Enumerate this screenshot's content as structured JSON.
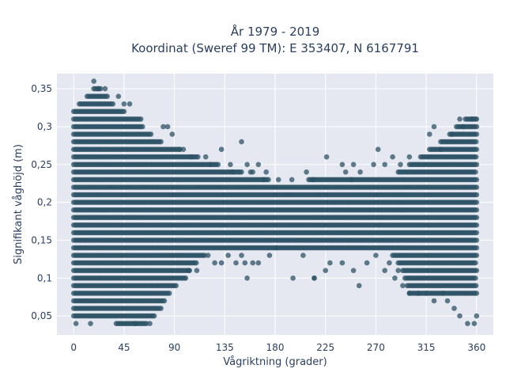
{
  "chart_data": {
    "type": "scatter",
    "title_line1": "År 1979 - 2019",
    "title_line2": "Koordinat (Sweref 99 TM): E 353407, N 6167791",
    "xlabel": "Vågriktning (grader)",
    "ylabel": "Signifikant våghöjd (m)",
    "xlim": [
      -15,
      375
    ],
    "ylim": [
      0.025,
      0.37
    ],
    "x_ticks": [
      0,
      45,
      90,
      135,
      180,
      225,
      270,
      315,
      360
    ],
    "x_tick_labels": [
      "0",
      "45",
      "90",
      "135",
      "180",
      "225",
      "270",
      "315",
      "360"
    ],
    "y_ticks": [
      0.05,
      0.1,
      0.15,
      0.2,
      0.25,
      0.3,
      0.35
    ],
    "y_tick_labels": [
      "0,05",
      "0,1",
      "0,15",
      "0,2",
      "0,25",
      "0,3",
      "0,35"
    ],
    "grid": true,
    "marker_color": "#2c5266",
    "plot_background": "#e5e8f0",
    "grid_color": "#ffffff",
    "series": [
      {
        "bands": [
          {
            "y": 0.04,
            "x": [
              [
                38,
                66
              ]
            ]
          },
          {
            "y": 0.05,
            "x": [
              [
                0,
                72
              ]
            ]
          },
          {
            "y": 0.06,
            "x": [
              [
                0,
                78
              ]
            ]
          },
          {
            "y": 0.07,
            "x": [
              [
                0,
                82
              ]
            ]
          },
          {
            "y": 0.08,
            "x": [
              [
                0,
                86
              ],
              [
                300,
                360
              ]
            ]
          },
          {
            "y": 0.09,
            "x": [
              [
                0,
                92
              ],
              [
                298,
                360
              ]
            ]
          },
          {
            "y": 0.1,
            "x": [
              [
                0,
                100
              ],
              [
                296,
                360
              ]
            ]
          },
          {
            "y": 0.11,
            "x": [
              [
                0,
                104
              ],
              [
                294,
                360
              ]
            ]
          },
          {
            "y": 0.12,
            "x": [
              [
                0,
                110
              ],
              [
                290,
                360
              ]
            ]
          },
          {
            "y": 0.13,
            "x": [
              [
                0,
                118
              ],
              [
                285,
                360
              ]
            ]
          },
          {
            "y": 0.14,
            "x": [
              [
                0,
                360
              ]
            ]
          },
          {
            "y": 0.15,
            "x": [
              [
                0,
                360
              ]
            ]
          },
          {
            "y": 0.16,
            "x": [
              [
                0,
                360
              ]
            ]
          },
          {
            "y": 0.17,
            "x": [
              [
                0,
                360
              ]
            ]
          },
          {
            "y": 0.18,
            "x": [
              [
                0,
                360
              ]
            ]
          },
          {
            "y": 0.19,
            "x": [
              [
                0,
                360
              ]
            ]
          },
          {
            "y": 0.2,
            "x": [
              [
                0,
                360
              ]
            ]
          },
          {
            "y": 0.21,
            "x": [
              [
                0,
                360
              ]
            ]
          },
          {
            "y": 0.22,
            "x": [
              [
                0,
                360
              ]
            ]
          },
          {
            "y": 0.23,
            "x": [
              [
                0,
                175
              ],
              [
                210,
                360
              ]
            ]
          },
          {
            "y": 0.24,
            "x": [
              [
                0,
                150
              ],
              [
                290,
                360
              ]
            ]
          },
          {
            "y": 0.25,
            "x": [
              [
                0,
                130
              ],
              [
                300,
                360
              ]
            ]
          },
          {
            "y": 0.26,
            "x": [
              [
                0,
                112
              ],
              [
                310,
                360
              ]
            ]
          },
          {
            "y": 0.27,
            "x": [
              [
                0,
                95
              ],
              [
                318,
                360
              ]
            ]
          },
          {
            "y": 0.28,
            "x": [
              [
                0,
                78
              ],
              [
                328,
                360
              ]
            ]
          },
          {
            "y": 0.29,
            "x": [
              [
                0,
                70
              ],
              [
                336,
                360
              ]
            ]
          },
          {
            "y": 0.3,
            "x": [
              [
                0,
                62
              ],
              [
                342,
                360
              ]
            ]
          },
          {
            "y": 0.31,
            "x": [
              [
                0,
                60
              ],
              [
                350,
                360
              ]
            ]
          },
          {
            "y": 0.32,
            "x": [
              [
                0,
                45
              ]
            ]
          },
          {
            "y": 0.33,
            "x": [
              [
                5,
                35
              ]
            ]
          },
          {
            "y": 0.34,
            "x": [
              [
                12,
                30
              ]
            ]
          },
          {
            "y": 0.35,
            "x": [
              [
                18,
                24
              ]
            ]
          }
        ],
        "points": [
          [
            2,
            0.04
          ],
          [
            15,
            0.04
          ],
          [
            55,
            0.04
          ],
          [
            68,
            0.04
          ],
          [
            18,
            0.36
          ],
          [
            40,
            0.34
          ],
          [
            45,
            0.33
          ],
          [
            50,
            0.33
          ],
          [
            28,
            0.35
          ],
          [
            22,
            0.35
          ],
          [
            80,
            0.3
          ],
          [
            84,
            0.3
          ],
          [
            88,
            0.29
          ],
          [
            95,
            0.27
          ],
          [
            98,
            0.27
          ],
          [
            105,
            0.26
          ],
          [
            118,
            0.26
          ],
          [
            122,
            0.25
          ],
          [
            132,
            0.27
          ],
          [
            150,
            0.28
          ],
          [
            140,
            0.25
          ],
          [
            142,
            0.24
          ],
          [
            155,
            0.25
          ],
          [
            158,
            0.24
          ],
          [
            160,
            0.24
          ],
          [
            165,
            0.25
          ],
          [
            170,
            0.23
          ],
          [
            172,
            0.24
          ],
          [
            183,
            0.23
          ],
          [
            195,
            0.23
          ],
          [
            208,
            0.24
          ],
          [
            214,
            0.23
          ],
          [
            226,
            0.26
          ],
          [
            240,
            0.25
          ],
          [
            243,
            0.24
          ],
          [
            248,
            0.23
          ],
          [
            250,
            0.25
          ],
          [
            256,
            0.24
          ],
          [
            268,
            0.25
          ],
          [
            272,
            0.27
          ],
          [
            278,
            0.25
          ],
          [
            285,
            0.26
          ],
          [
            292,
            0.25
          ],
          [
            300,
            0.26
          ],
          [
            318,
            0.29
          ],
          [
            322,
            0.3
          ],
          [
            328,
            0.27
          ],
          [
            338,
            0.29
          ],
          [
            348,
            0.3
          ],
          [
            356,
            0.31
          ],
          [
            360,
            0.31
          ],
          [
            345,
            0.31
          ],
          [
            100,
            0.1
          ],
          [
            103,
            0.11
          ],
          [
            110,
            0.11
          ],
          [
            120,
            0.13
          ],
          [
            126,
            0.12
          ],
          [
            132,
            0.12
          ],
          [
            138,
            0.13
          ],
          [
            145,
            0.12
          ],
          [
            150,
            0.13
          ],
          [
            153,
            0.12
          ],
          [
            160,
            0.12
          ],
          [
            165,
            0.12
          ],
          [
            175,
            0.13
          ],
          [
            181,
            0.14
          ],
          [
            205,
            0.13
          ],
          [
            215,
            0.1
          ],
          [
            225,
            0.11
          ],
          [
            229,
            0.12
          ],
          [
            240,
            0.12
          ],
          [
            250,
            0.11
          ],
          [
            255,
            0.09
          ],
          [
            262,
            0.12
          ],
          [
            270,
            0.13
          ],
          [
            278,
            0.11
          ],
          [
            282,
            0.12
          ],
          [
            287,
            0.1
          ],
          [
            290,
            0.11
          ],
          [
            294,
            0.09
          ],
          [
            300,
            0.08
          ],
          [
            308,
            0.08
          ],
          [
            315,
            0.08
          ],
          [
            322,
            0.07
          ],
          [
            330,
            0.08
          ],
          [
            334,
            0.07
          ],
          [
            340,
            0.06
          ],
          [
            345,
            0.05
          ],
          [
            352,
            0.04
          ],
          [
            358,
            0.04
          ],
          [
            360,
            0.05
          ],
          [
            155,
            0.1
          ],
          [
            196,
            0.1
          ],
          [
            215,
            0.1
          ]
        ]
      }
    ]
  }
}
